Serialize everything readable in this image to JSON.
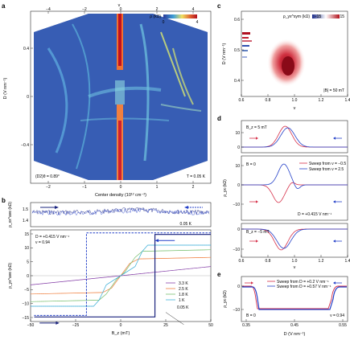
{
  "panels": {
    "a": {
      "label": "a",
      "top_axis_label": "ν",
      "top_ticks": [
        "−4",
        "−2",
        "0",
        "2",
        "4"
      ],
      "y_label": "D (V nm⁻¹)",
      "y_ticks": [
        "0.4",
        "0",
        "−0.4"
      ],
      "x_label": "Center density (10¹² cm⁻²)",
      "x_ticks": [
        "−2",
        "−1",
        "0",
        "1",
        "2"
      ],
      "cbar_label": "ρ (kΩ)",
      "cbar_ticks": [
        "0",
        "4"
      ],
      "annot_left": "(D2)θ = 0.89°",
      "annot_right": "T = 0.05 K"
    },
    "b": {
      "label": "b",
      "top": {
        "y_label": "ρ_xx^ave (kΩ)",
        "y_ticks": [
          "1.5",
          "1.4"
        ],
        "annot": "0.05 K"
      },
      "bottom": {
        "y_label": "ρ_yx^ave (kΩ)",
        "y_ticks": [
          "15",
          "10",
          "5",
          "0",
          "−5",
          "−10",
          "−15"
        ],
        "x_label": "B_z (mT)",
        "x_ticks": [
          "−50",
          "−25",
          "0",
          "25",
          "50"
        ],
        "annot1": "D = +0.415 V nm⁻¹",
        "annot2": "ν = 0.94",
        "legend": [
          "3.3 K",
          "2.5 K",
          "1.8 K",
          "1 K"
        ],
        "annot_bottom": "0.05 K"
      }
    },
    "c": {
      "label": "c",
      "y_label": "D (V nm⁻¹)",
      "y_ticks": [
        "0.6",
        "0.5",
        "0.4"
      ],
      "x_label": "ν",
      "x_ticks": [
        "0.6",
        "0.8",
        "1.0",
        "1.2",
        "1.4"
      ],
      "cbar_label": "ρ_yx^sym (kΩ)",
      "cbar_ticks": [
        "−15",
        "15"
      ],
      "annot": "|B| = 50 mT"
    },
    "d": {
      "label": "d",
      "y_label": "ρ_yx (kΩ)",
      "x_label": "ν",
      "x_ticks": [
        "0.6",
        "0.8",
        "1.0",
        "1.2",
        "1.4"
      ],
      "sub1": {
        "annot": "B_z = 5 mT",
        "y_ticks": [
          "10",
          "0"
        ]
      },
      "sub2": {
        "annot": "B = 0",
        "legend": [
          "Sweep from ν = −0.5",
          "Sweep from ν = 2.5"
        ],
        "annot2": "D = +0.415 V nm⁻¹",
        "y_ticks": [
          "10",
          "0",
          "−10"
        ]
      },
      "sub3": {
        "annot": "B_z = −5 mT",
        "y_ticks": [
          "0",
          "−10"
        ]
      }
    },
    "e": {
      "label": "e",
      "y_label": "ρ_yx (kΩ)",
      "y_ticks": [
        "0",
        "−10"
      ],
      "x_label": "D (V nm⁻¹)",
      "x_ticks": [
        "0.35",
        "0.45",
        "0.55"
      ],
      "legend": [
        "Sweep from D = +0.2 V nm⁻¹",
        "Sweep from D = +0.57 V nm⁻¹"
      ],
      "annot1": "B = 0",
      "annot2": "ν = 0.94"
    }
  },
  "colors": {
    "red": "#d6304a",
    "blue": "#2440c8",
    "navy": "#1a237e",
    "orange": "#f08040",
    "green": "#7ac070",
    "purple": "#8844aa",
    "cyan": "#40b0d8"
  },
  "chart_data": [
    {
      "type": "heatmap",
      "panel": "a",
      "xlim": [
        -2.4,
        2.4
      ],
      "ylim": [
        -0.6,
        0.6
      ],
      "clim": [
        0,
        4
      ],
      "xlabel": "Center density (10¹² cm⁻²)",
      "ylabel": "D (V nm⁻¹)"
    },
    {
      "type": "line",
      "panel": "b-bottom",
      "xlim": [
        -50,
        50
      ],
      "ylim": [
        -15,
        15
      ],
      "series": [
        {
          "name": "3.3 K",
          "x": [
            -50,
            50
          ],
          "y": [
            -3,
            3
          ]
        },
        {
          "name": "2.5 K",
          "x": [
            -50,
            -10,
            -5,
            0,
            5,
            10,
            50
          ],
          "y": [
            -6,
            -5.5,
            -4,
            0,
            4,
            5.5,
            6
          ]
        },
        {
          "name": "1.8 K",
          "x": [
            -50,
            -12,
            -8,
            -2,
            2,
            8,
            12,
            50
          ],
          "y": [
            -8.5,
            -8,
            -6,
            -1,
            1,
            6,
            8,
            8.5
          ]
        },
        {
          "name": "1 K",
          "x": [
            -50,
            -15,
            -12,
            -8,
            8,
            12,
            15,
            50
          ],
          "y": [
            -10,
            -10,
            -8,
            -3,
            3,
            8,
            10,
            10
          ]
        }
      ]
    },
    {
      "type": "heatmap",
      "panel": "c",
      "xlim": [
        0.6,
        1.4
      ],
      "ylim": [
        0.38,
        0.6
      ],
      "clim": [
        -15,
        15
      ]
    },
    {
      "type": "line",
      "panel": "e",
      "xlim": [
        0.32,
        0.57
      ],
      "ylim": [
        -15,
        5
      ]
    }
  ]
}
